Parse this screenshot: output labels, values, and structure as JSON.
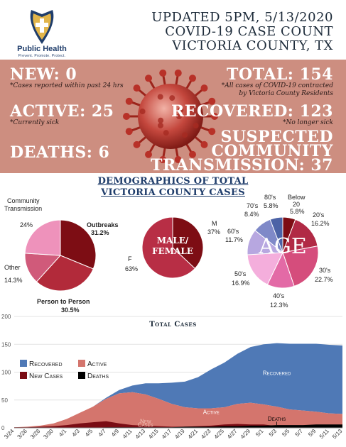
{
  "header": {
    "logo_brand": "Public Health",
    "logo_tagline": "Prevent. Promote. Protect.",
    "line1": "UPDATED 5PM, 5/13/2020",
    "line2": "COVID-19 CASE COUNT",
    "line3": "VICTORIA COUNTY, TX"
  },
  "summary": {
    "new": "NEW: 0",
    "new_note": "*Cases reported within past 24 hrs",
    "total": "TOTAL: 154",
    "total_note_1": "*All cases of COVID-19 contracted",
    "total_note_2": "by Victoria County Residents",
    "active": "ACTIVE: 25",
    "active_note": "*Currently sick",
    "recovered": "RECOVERED: 123",
    "recovered_note": "*No longer sick",
    "deaths": "DEATHS: 6",
    "suspected_1": "SUSPECTED",
    "suspected_2": "COMMUNITY",
    "suspected_3": "TRANSMISSION: 37"
  },
  "demographics_title_1": "DEMOGRAPHICS OF TOTAL",
  "demographics_title_2": "VICTORIA COUNTY CASES",
  "colors": {
    "banner": "#cd8e80",
    "recovered": "#4f79b6",
    "active": "#d4756d",
    "new_cases": "#7a0c14",
    "deaths": "#000000"
  },
  "chart_data": [
    {
      "type": "pie",
      "labels": [
        "Outbreaks",
        "Person to Person",
        "Other",
        "24%"
      ],
      "label_texts": {
        "outbreaks": "Outbreaks",
        "outbreaks_pct": "31.2%",
        "p2p": "Person to Person",
        "p2p_pct": "30.5%",
        "other": "Other",
        "other_pct": "14.3%",
        "community_1": "Community",
        "community_2": "Transmission",
        "community_pct": "24%"
      },
      "categories": [
        "Outbreaks",
        "Person to Person",
        "Other",
        "Community Transmission"
      ],
      "values": [
        31.2,
        30.5,
        14.3,
        24
      ],
      "colors": [
        "#7d0d14",
        "#b22a3a",
        "#d05a7a",
        "#ee92bb"
      ]
    },
    {
      "type": "pie",
      "center_label_1": "MALE/",
      "center_label_2": "FEMALE",
      "label_texts": {
        "m": "M",
        "m_pct": "37%",
        "f": "F",
        "f_pct": "63%"
      },
      "categories": [
        "M",
        "F"
      ],
      "values": [
        37,
        63
      ],
      "colors": [
        "#7d0d14",
        "#b82e45"
      ]
    },
    {
      "type": "pie",
      "center_label": "AGE",
      "label_texts": {
        "below20_1": "Below",
        "below20_2": "20",
        "below20_pct": "5.8%",
        "twenties": "20's",
        "twenties_pct": "16.2%",
        "thirties": "30's",
        "thirties_pct": "22.7%",
        "forties": "40's",
        "forties_pct": "12.3%",
        "fifties": "50's",
        "fifties_pct": "16.9%",
        "sixties": "60's",
        "sixties_pct": "11.7%",
        "seventies": "70's",
        "seventies_pct": "8.4%",
        "eighties": "80's",
        "eighties_pct": "5.8%"
      },
      "categories": [
        "Below 20",
        "20's",
        "30's",
        "40's",
        "50's",
        "60's",
        "70's",
        "80's"
      ],
      "values": [
        5.8,
        16.2,
        22.7,
        12.3,
        16.9,
        11.7,
        8.4,
        5.8
      ],
      "colors": [
        "#7d0d14",
        "#b12a45",
        "#d54d7c",
        "#e36aa6",
        "#f4aedc",
        "#b7a7e0",
        "#7f89c8",
        "#4c63a6"
      ]
    },
    {
      "type": "area",
      "title": "Total Cases",
      "ylim": [
        0,
        200
      ],
      "yticks": [
        0,
        50,
        100,
        150,
        200
      ],
      "xtick_labels": [
        "3/24",
        "3/26",
        "3/28",
        "3/30",
        "4/1",
        "4/3",
        "4/5",
        "4/7",
        "4/9",
        "4/11",
        "4/13",
        "4/15",
        "4/17",
        "4/19",
        "4/21",
        "4/23",
        "4/25",
        "4/27",
        "4/29",
        "5/1",
        "5/3",
        "5/5",
        "5/7",
        "5/9",
        "5/11",
        "5/13"
      ],
      "legend": [
        "Recovered",
        "Active",
        "New Cases",
        "Deaths"
      ],
      "annotations": {
        "recovered": "Recovered",
        "active": "Active",
        "new_cases_1": "New",
        "new_cases_2": "Cases",
        "deaths": "Deaths"
      },
      "x": [
        "3/24",
        "3/26",
        "3/28",
        "3/30",
        "4/1",
        "4/3",
        "4/5",
        "4/7",
        "4/9",
        "4/11",
        "4/13",
        "4/15",
        "4/17",
        "4/19",
        "4/21",
        "4/23",
        "4/25",
        "4/27",
        "4/29",
        "5/1",
        "5/3",
        "5/5",
        "5/7",
        "5/9",
        "5/11",
        "5/13"
      ],
      "series": [
        {
          "name": "Recovered",
          "values": [
            0,
            0,
            0,
            0,
            0,
            0,
            0,
            2,
            6,
            12,
            20,
            28,
            38,
            46,
            56,
            70,
            80,
            90,
            100,
            108,
            114,
            118,
            120,
            122,
            123,
            123
          ]
        },
        {
          "name": "Active",
          "values": [
            1,
            2,
            4,
            8,
            16,
            27,
            38,
            52,
            62,
            64,
            60,
            52,
            43,
            37,
            35,
            35,
            37,
            43,
            45,
            42,
            38,
            33,
            31,
            29,
            26,
            25
          ]
        },
        {
          "name": "New Cases",
          "values": [
            1,
            1,
            2,
            3,
            5,
            8,
            10,
            12,
            8,
            5,
            4,
            3,
            2,
            2,
            3,
            4,
            6,
            7,
            6,
            6,
            3,
            2,
            1,
            1,
            1,
            0
          ]
        },
        {
          "name": "Deaths",
          "values": [
            0,
            0,
            0,
            0,
            0,
            0,
            0,
            1,
            1,
            1,
            1,
            1,
            1,
            2,
            2,
            2,
            3,
            3,
            4,
            4,
            5,
            5,
            5,
            6,
            6,
            6
          ]
        }
      ]
    }
  ]
}
